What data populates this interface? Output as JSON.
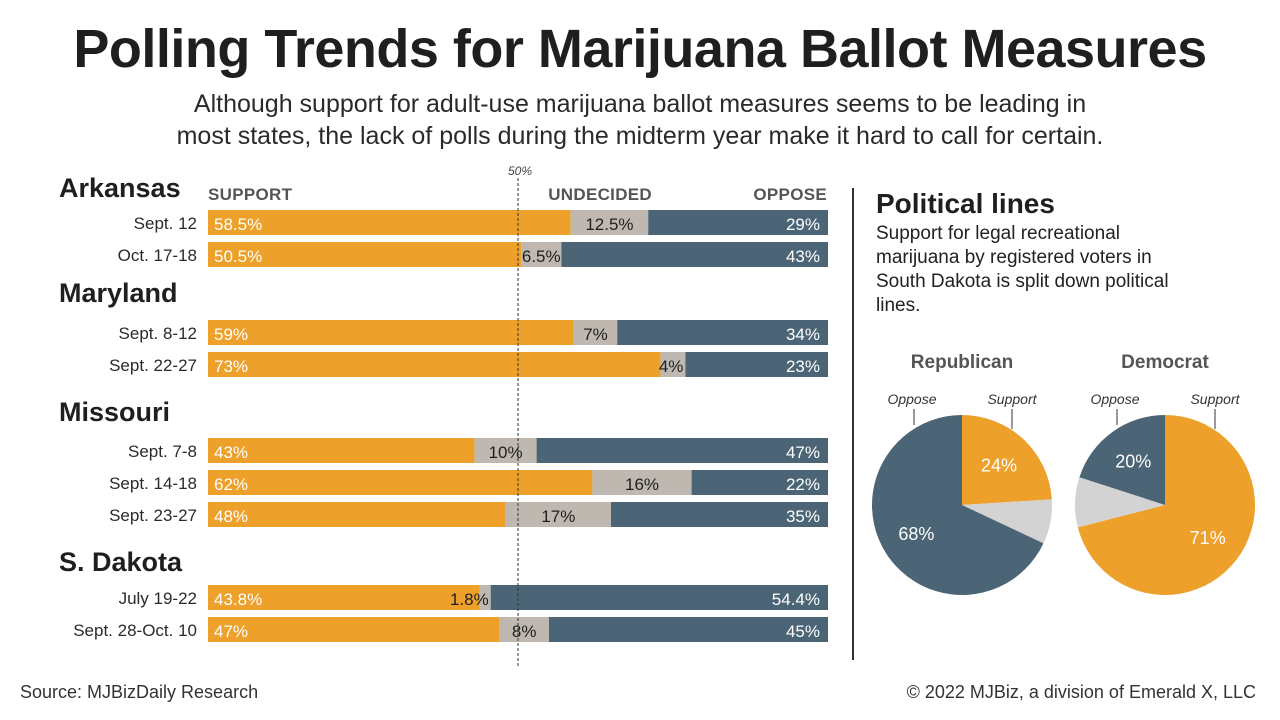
{
  "title": "Polling Trends for Marijuana Ballot Measures",
  "subtitle_line1": "Although support for adult-use marijuana ballot measures seems to be leading in",
  "subtitle_line2": "most states, the lack of polls during the midterm year make it hard to call for certain.",
  "colors": {
    "support": "#eda02a",
    "undecided": "#bfb8b1",
    "oppose": "#4b6476",
    "undecided_pie": "#d3d3d3"
  },
  "chart_data": [
    {
      "type": "bar",
      "stacked": true,
      "orientation": "horizontal",
      "columns": [
        "SUPPORT",
        "UNDECIDED",
        "OPPOSE"
      ],
      "reference_line": {
        "value": 50,
        "label": "50%"
      },
      "groups": [
        {
          "state": "Arkansas",
          "polls": [
            {
              "date": "Sept. 12",
              "support": 58.5,
              "undecided": 12.5,
              "oppose": 29,
              "labels": [
                "58.5%",
                "12.5%",
                "29%"
              ]
            },
            {
              "date": "Oct. 17-18",
              "support": 50.5,
              "undecided": 6.5,
              "oppose": 43,
              "labels": [
                "50.5%",
                "6.5%",
                "43%"
              ]
            }
          ]
        },
        {
          "state": "Maryland",
          "polls": [
            {
              "date": "Sept. 8-12",
              "support": 59,
              "undecided": 7,
              "oppose": 34,
              "labels": [
                "59%",
                "7%",
                "34%"
              ]
            },
            {
              "date": "Sept. 22-27",
              "support": 73,
              "undecided": 4,
              "oppose": 23,
              "labels": [
                "73%",
                "4%",
                "23%"
              ]
            }
          ]
        },
        {
          "state": "Missouri",
          "polls": [
            {
              "date": "Sept. 7-8",
              "support": 43,
              "undecided": 10,
              "oppose": 47,
              "labels": [
                "43%",
                "10%",
                "47%"
              ]
            },
            {
              "date": "Sept. 14-18",
              "support": 62,
              "undecided": 16,
              "oppose": 22,
              "labels": [
                "62%",
                "16%",
                "22%"
              ]
            },
            {
              "date": "Sept. 23-27",
              "support": 48,
              "undecided": 17,
              "oppose": 35,
              "labels": [
                "48%",
                "17%",
                "35%"
              ]
            }
          ]
        },
        {
          "state": "S. Dakota",
          "polls": [
            {
              "date": "July 19-22",
              "support": 43.8,
              "undecided": 1.8,
              "oppose": 54.4,
              "labels": [
                "43.8%",
                "1.8%",
                "54.4%"
              ]
            },
            {
              "date": "Sept. 28-Oct. 10",
              "support": 47,
              "undecided": 8,
              "oppose": 45,
              "labels": [
                "47%",
                "8%",
                "45%"
              ]
            }
          ]
        }
      ]
    },
    {
      "type": "pie",
      "title": "Political lines",
      "description": "Support for legal recreational marijuana by registered voters in South Dakota is split down political lines.",
      "pies": [
        {
          "name": "Republican",
          "label_left": "Oppose",
          "label_right": "Support",
          "slices": [
            {
              "name": "Support",
              "value": 24,
              "label": "24%"
            },
            {
              "name": "Undecided",
              "value": 8,
              "label": ""
            },
            {
              "name": "Oppose",
              "value": 68,
              "label": "68%"
            }
          ]
        },
        {
          "name": "Democrat",
          "label_left": "Oppose",
          "label_right": "Support",
          "slices": [
            {
              "name": "Support",
              "value": 71,
              "label": "71%"
            },
            {
              "name": "Undecided",
              "value": 9,
              "label": ""
            },
            {
              "name": "Oppose",
              "value": 20,
              "label": "20%"
            }
          ]
        }
      ]
    }
  ],
  "footer": {
    "source": "Source: MJBizDaily Research",
    "copyright": "© 2022 MJBiz, a division of Emerald X, LLC"
  }
}
